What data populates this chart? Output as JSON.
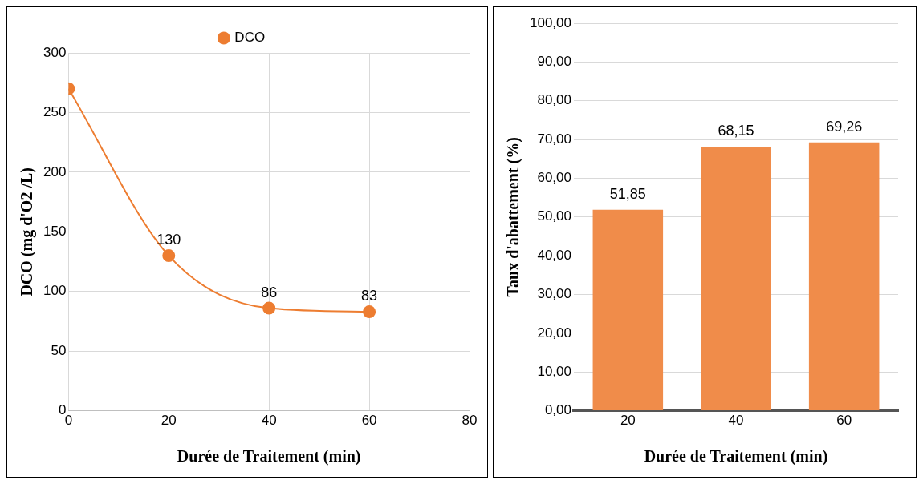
{
  "chart_data": [
    {
      "type": "line",
      "xlabel": "Durée de Traitement (min)",
      "ylabel": "DCO (mg d'O2 /L)",
      "x": [
        0,
        20,
        40,
        60
      ],
      "series": [
        {
          "name": "DCO",
          "color": "#ed7d31",
          "values": [
            270,
            130,
            86,
            83
          ],
          "value_labels": [
            null,
            "130",
            "86",
            "83"
          ]
        }
      ],
      "xlim": [
        0,
        80
      ],
      "xticks": [
        0,
        20,
        40,
        60,
        80
      ],
      "ylim": [
        0,
        300
      ],
      "yticks": [
        0,
        50,
        100,
        150,
        200,
        250,
        300
      ],
      "grid": true,
      "legend": "top",
      "marker": "circle"
    },
    {
      "type": "bar",
      "xlabel": "Durée de Traitement (min)",
      "ylabel": "Taux d'abattement (%)",
      "categories": [
        "20",
        "40",
        "60"
      ],
      "values": [
        51.85,
        68.15,
        69.26
      ],
      "value_labels": [
        "51,85",
        "68,15",
        "69,26"
      ],
      "color": "#f08c4a",
      "ylim": [
        0,
        100
      ],
      "yticks": [
        {
          "value": 0,
          "label": "0,00"
        },
        {
          "value": 10,
          "label": "10,00"
        },
        {
          "value": 20,
          "label": "20,00"
        },
        {
          "value": 30,
          "label": "30,00"
        },
        {
          "value": 40,
          "label": "40,00"
        },
        {
          "value": 50,
          "label": "50,00"
        },
        {
          "value": 60,
          "label": "60,00"
        },
        {
          "value": 70,
          "label": "70,00"
        },
        {
          "value": 80,
          "label": "80,00"
        },
        {
          "value": 90,
          "label": "90,00"
        },
        {
          "value": 100,
          "label": "100,00"
        }
      ],
      "grid": "y"
    }
  ]
}
